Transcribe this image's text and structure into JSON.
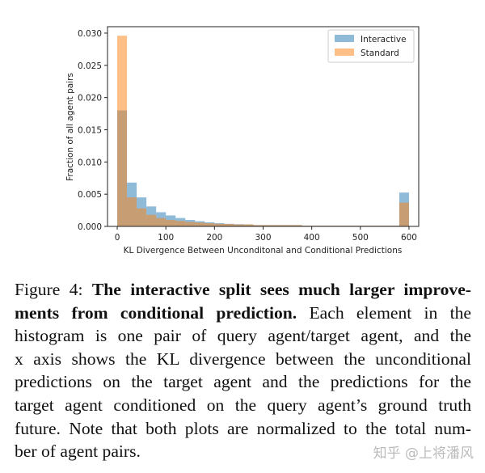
{
  "chart_data": {
    "type": "bar",
    "histogram": true,
    "bin_edges_start": 0,
    "bin_width": 20,
    "xlabel": "KL Divergence Between Unconditonal and Conditional Predictions",
    "ylabel": "Fraction of all agent pairs",
    "xlim": [
      -20,
      620
    ],
    "ylim": [
      0,
      0.031
    ],
    "xticks": [
      "0",
      "100",
      "200",
      "300",
      "400",
      "500",
      "600"
    ],
    "yticks": [
      "0.000",
      "0.005",
      "0.010",
      "0.015",
      "0.020",
      "0.025",
      "0.030"
    ],
    "legend_placement": "top-right",
    "grid": false,
    "series": [
      {
        "name": "Interactive",
        "color": "#1f77b4",
        "values": [
          0.018,
          0.0068,
          0.0045,
          0.0031,
          0.0022,
          0.0017,
          0.0013,
          0.001,
          0.0008,
          0.00063,
          0.0005,
          0.0004,
          0.00034,
          0.0003,
          0.0002,
          0.0002,
          0.0002,
          0.0002,
          0.0002,
          0.0001,
          0.0001,
          0.0001,
          0.0001,
          0.0001,
          0.0001,
          0.0001,
          0.0001,
          0.0001,
          0.0001,
          0.00525
        ]
      },
      {
        "name": "Standard",
        "color": "#ff7f0e",
        "values": [
          0.0296,
          0.0045,
          0.0028,
          0.0018,
          0.0013,
          0.001,
          0.00085,
          0.0007,
          0.0006,
          0.0005,
          0.0004,
          0.00038,
          0.0003,
          0.0003,
          0.0002,
          0.0002,
          0.0002,
          0.0002,
          0.0002,
          0.0001,
          0.0001,
          0.0001,
          0.0001,
          0.0001,
          0.0001,
          0.0001,
          0.0001,
          0.0001,
          0.0001,
          0.0037
        ]
      }
    ]
  },
  "caption": {
    "label": "Figure 4:",
    "bold_1": "The interactive split sees much larger improve-",
    "bold_2": "ments from conditional prediction.",
    "line_2_rest": "Each element in the",
    "line_3": "histogram is one pair of query agent/target agent, and the",
    "line_4": "x axis shows the KL divergence between the unconditional",
    "line_5": "predictions on the target agent and the predictions for the",
    "line_6": "target agent conditioned on the query agent’s ground truth",
    "line_7": "future. Note that both plots are normalized to the total num-",
    "line_8": "ber of agent pairs."
  },
  "watermark": "知乎 @上将潘风"
}
